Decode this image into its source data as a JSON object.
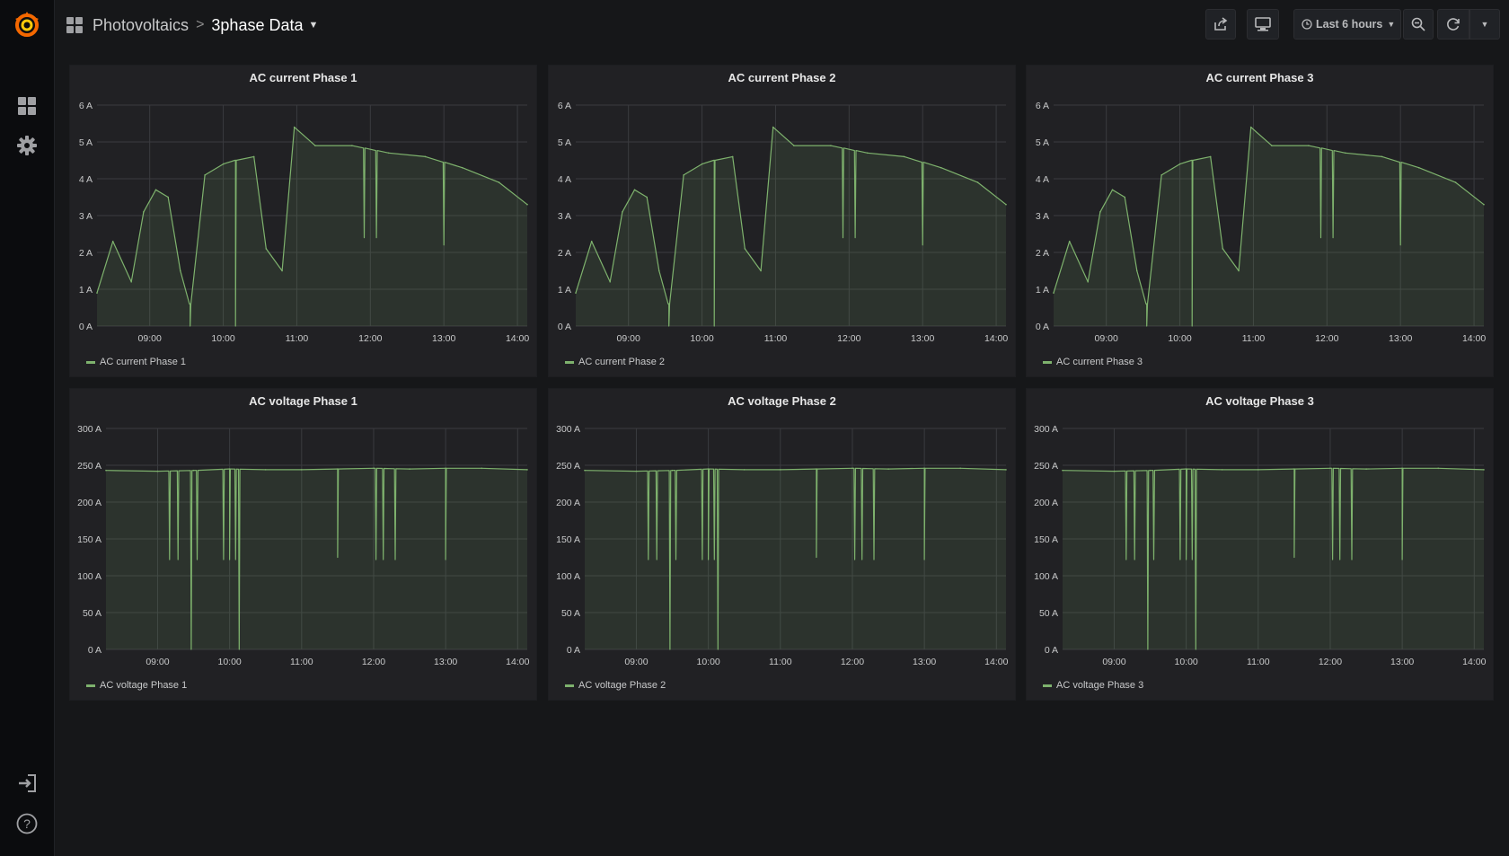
{
  "nav": {
    "logo_icon": "grafana-logo-icon",
    "dashboards_icon": "dashboards-grid-icon",
    "settings_icon": "gear-icon",
    "signin_icon": "sign-in-icon",
    "help_icon": "help-icon"
  },
  "header": {
    "folder": "Photovoltaics",
    "separator": ">",
    "title": "3phase Data",
    "time_range": "Last 6 hours"
  },
  "colors": {
    "series": "#7eb26d",
    "background": "#161719",
    "panel": "#212124",
    "accent": "#eb7b18"
  },
  "chart_data": [
    {
      "type": "area",
      "title": "AC current Phase 1",
      "x_ticks": [
        "09:00",
        "10:00",
        "11:00",
        "12:00",
        "13:00",
        "14:00"
      ],
      "y_ticks": [
        "0 A",
        "1 A",
        "2 A",
        "3 A",
        "4 A",
        "5 A",
        "6 A"
      ],
      "ylim": [
        0,
        6
      ],
      "series": [
        {
          "name": "AC current Phase 1"
        }
      ],
      "x": [
        "08:17",
        "08:30",
        "08:45",
        "08:55",
        "09:05",
        "09:15",
        "09:25",
        "09:33",
        "09:45",
        "10:00",
        "10:10",
        "10:25",
        "10:35",
        "10:48",
        "10:58",
        "11:15",
        "11:45",
        "12:15",
        "12:45",
        "13:15",
        "13:45",
        "14:08"
      ],
      "values": [
        0.9,
        2.3,
        1.2,
        3.1,
        3.7,
        3.5,
        1.5,
        0.6,
        4.1,
        4.4,
        4.5,
        4.6,
        2.1,
        1.5,
        5.4,
        4.9,
        4.9,
        4.7,
        4.6,
        4.3,
        3.9,
        3.3
      ],
      "dips": [
        [
          "09:33",
          0.0
        ],
        [
          "10:10",
          0.0
        ],
        [
          "11:55",
          2.4
        ],
        [
          "12:05",
          2.4
        ],
        [
          "13:00",
          2.2
        ]
      ]
    },
    {
      "type": "area",
      "title": "AC current Phase 2",
      "x_ticks": [
        "09:00",
        "10:00",
        "11:00",
        "12:00",
        "13:00",
        "14:00"
      ],
      "y_ticks": [
        "0 A",
        "1 A",
        "2 A",
        "3 A",
        "4 A",
        "5 A",
        "6 A"
      ],
      "ylim": [
        0,
        6
      ],
      "series": [
        {
          "name": "AC current Phase 2"
        }
      ],
      "x": [
        "08:17",
        "08:30",
        "08:45",
        "08:55",
        "09:05",
        "09:15",
        "09:25",
        "09:33",
        "09:45",
        "10:00",
        "10:10",
        "10:25",
        "10:35",
        "10:48",
        "10:58",
        "11:15",
        "11:45",
        "12:15",
        "12:45",
        "13:15",
        "13:45",
        "14:08"
      ],
      "values": [
        0.9,
        2.3,
        1.2,
        3.1,
        3.7,
        3.5,
        1.5,
        0.6,
        4.1,
        4.4,
        4.5,
        4.6,
        2.1,
        1.5,
        5.4,
        4.9,
        4.9,
        4.7,
        4.6,
        4.3,
        3.9,
        3.3
      ],
      "dips": [
        [
          "09:33",
          0.0
        ],
        [
          "10:10",
          0.0
        ],
        [
          "11:55",
          2.4
        ],
        [
          "12:05",
          2.4
        ],
        [
          "13:00",
          2.2
        ]
      ]
    },
    {
      "type": "area",
      "title": "AC current Phase 3",
      "x_ticks": [
        "09:00",
        "10:00",
        "11:00",
        "12:00",
        "13:00",
        "14:00"
      ],
      "y_ticks": [
        "0 A",
        "1 A",
        "2 A",
        "3 A",
        "4 A",
        "5 A",
        "6 A"
      ],
      "ylim": [
        0,
        6
      ],
      "series": [
        {
          "name": "AC current Phase 3"
        }
      ],
      "x": [
        "08:17",
        "08:30",
        "08:45",
        "08:55",
        "09:05",
        "09:15",
        "09:25",
        "09:33",
        "09:45",
        "10:00",
        "10:10",
        "10:25",
        "10:35",
        "10:48",
        "10:58",
        "11:15",
        "11:45",
        "12:15",
        "12:45",
        "13:15",
        "13:45",
        "14:08"
      ],
      "values": [
        0.9,
        2.3,
        1.2,
        3.1,
        3.7,
        3.5,
        1.5,
        0.6,
        4.1,
        4.4,
        4.5,
        4.6,
        2.1,
        1.5,
        5.4,
        4.9,
        4.9,
        4.7,
        4.6,
        4.3,
        3.9,
        3.3
      ],
      "dips": [
        [
          "09:33",
          0.0
        ],
        [
          "10:10",
          0.0
        ],
        [
          "11:55",
          2.4
        ],
        [
          "12:05",
          2.4
        ],
        [
          "13:00",
          2.2
        ]
      ]
    },
    {
      "type": "area",
      "title": "AC voltage Phase 1",
      "x_ticks": [
        "09:00",
        "10:00",
        "11:00",
        "12:00",
        "13:00",
        "14:00"
      ],
      "y_ticks": [
        "0 A",
        "50 A",
        "100 A",
        "150 A",
        "200 A",
        "250 A",
        "300 A"
      ],
      "ylim": [
        0,
        300
      ],
      "series": [
        {
          "name": "AC voltage Phase 1"
        }
      ],
      "x": [
        "08:17",
        "09:00",
        "09:30",
        "10:00",
        "10:30",
        "11:00",
        "11:30",
        "12:00",
        "12:30",
        "13:00",
        "13:30",
        "14:08"
      ],
      "values": [
        243,
        242,
        243,
        245,
        244,
        244,
        245,
        246,
        245,
        246,
        246,
        244
      ],
      "dips": [
        [
          "09:10",
          122
        ],
        [
          "09:17",
          122
        ],
        [
          "09:28",
          0
        ],
        [
          "09:33",
          122
        ],
        [
          "09:55",
          122
        ],
        [
          "10:00",
          122
        ],
        [
          "10:05",
          122
        ],
        [
          "10:08",
          0
        ],
        [
          "11:30",
          125
        ],
        [
          "12:02",
          122
        ],
        [
          "12:08",
          122
        ],
        [
          "12:18",
          122
        ],
        [
          "13:00",
          122
        ]
      ]
    },
    {
      "type": "area",
      "title": "AC voltage Phase 2",
      "x_ticks": [
        "09:00",
        "10:00",
        "11:00",
        "12:00",
        "13:00",
        "14:00"
      ],
      "y_ticks": [
        "0 A",
        "50 A",
        "100 A",
        "150 A",
        "200 A",
        "250 A",
        "300 A"
      ],
      "ylim": [
        0,
        300
      ],
      "series": [
        {
          "name": "AC voltage Phase 2"
        }
      ],
      "x": [
        "08:17",
        "09:00",
        "09:30",
        "10:00",
        "10:30",
        "11:00",
        "11:30",
        "12:00",
        "12:30",
        "13:00",
        "13:30",
        "14:08"
      ],
      "values": [
        243,
        242,
        243,
        245,
        244,
        244,
        245,
        246,
        245,
        246,
        246,
        244
      ],
      "dips": [
        [
          "09:10",
          122
        ],
        [
          "09:17",
          122
        ],
        [
          "09:28",
          0
        ],
        [
          "09:33",
          122
        ],
        [
          "09:55",
          122
        ],
        [
          "10:00",
          122
        ],
        [
          "10:05",
          122
        ],
        [
          "10:08",
          0
        ],
        [
          "11:30",
          125
        ],
        [
          "12:02",
          122
        ],
        [
          "12:08",
          122
        ],
        [
          "12:18",
          122
        ],
        [
          "13:00",
          122
        ]
      ]
    },
    {
      "type": "area",
      "title": "AC voltage Phase 3",
      "x_ticks": [
        "09:00",
        "10:00",
        "11:00",
        "12:00",
        "13:00",
        "14:00"
      ],
      "y_ticks": [
        "0 A",
        "50 A",
        "100 A",
        "150 A",
        "200 A",
        "250 A",
        "300 A"
      ],
      "ylim": [
        0,
        300
      ],
      "series": [
        {
          "name": "AC voltage Phase 3"
        }
      ],
      "x": [
        "08:17",
        "09:00",
        "09:30",
        "10:00",
        "10:30",
        "11:00",
        "11:30",
        "12:00",
        "12:30",
        "13:00",
        "13:30",
        "14:08"
      ],
      "values": [
        243,
        242,
        243,
        245,
        244,
        244,
        245,
        246,
        245,
        246,
        246,
        244
      ],
      "dips": [
        [
          "09:10",
          122
        ],
        [
          "09:17",
          122
        ],
        [
          "09:28",
          0
        ],
        [
          "09:33",
          122
        ],
        [
          "09:55",
          122
        ],
        [
          "10:00",
          122
        ],
        [
          "10:05",
          122
        ],
        [
          "10:08",
          0
        ],
        [
          "11:30",
          125
        ],
        [
          "12:02",
          122
        ],
        [
          "12:08",
          122
        ],
        [
          "12:18",
          122
        ],
        [
          "13:00",
          122
        ]
      ]
    }
  ]
}
